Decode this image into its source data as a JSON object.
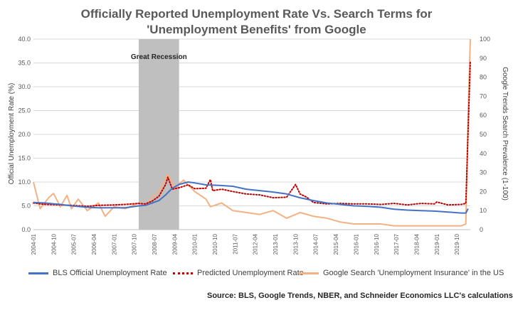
{
  "chart_data": {
    "type": "line",
    "title": [
      "Officially Reported Unemployment Rate Vs. Search Terms for",
      "'Unemployment Benefits' from Google"
    ],
    "ylabel": "Official Unemployment Rate (%)",
    "y2label": "Google Trends Search Prevalence (1-100)",
    "ylim": [
      0,
      40
    ],
    "y_ticks": [
      "0.0",
      "5.0",
      "10.0",
      "15.0",
      "20.0",
      "25.0",
      "30.0",
      "35.0",
      "40.0"
    ],
    "y2lim": [
      0,
      100
    ],
    "y2_ticks": [
      "0",
      "10",
      "20",
      "30",
      "40",
      "50",
      "60",
      "70",
      "80",
      "90",
      "100"
    ],
    "x_tick_labels": [
      "2004-01",
      "2004-10",
      "2005-07",
      "2006-04",
      "2007-01",
      "2007-10",
      "2008-07",
      "2009-04",
      "2010-01",
      "2010-10",
      "2011-07",
      "2012-04",
      "2013-01",
      "2013-10",
      "2014-07",
      "2015-04",
      "2016-01",
      "2016-10",
      "2017-07",
      "2018-04",
      "2019-01",
      "2019-10"
    ],
    "x_range": [
      "2004-01",
      "2020-04"
    ],
    "shaded_region": {
      "label": "Great Recession",
      "start": "2007-12",
      "end": "2009-06"
    },
    "grid": "horizontal",
    "legend_position": "bottom",
    "series": [
      {
        "name": "BLS Official Unemployment Rate",
        "axis": "left",
        "style": "solid",
        "color": "#4472c4",
        "points": [
          [
            "2004-01",
            5.7
          ],
          [
            "2004-06",
            5.6
          ],
          [
            "2005-01",
            5.3
          ],
          [
            "2005-06",
            5.0
          ],
          [
            "2006-01",
            4.7
          ],
          [
            "2006-06",
            4.6
          ],
          [
            "2007-01",
            4.6
          ],
          [
            "2007-06",
            4.6
          ],
          [
            "2007-12",
            5.0
          ],
          [
            "2008-03",
            5.1
          ],
          [
            "2008-06",
            5.6
          ],
          [
            "2008-09",
            6.1
          ],
          [
            "2008-12",
            7.3
          ],
          [
            "2009-03",
            8.7
          ],
          [
            "2009-06",
            9.5
          ],
          [
            "2009-10",
            10.0
          ],
          [
            "2010-01",
            9.8
          ],
          [
            "2010-06",
            9.4
          ],
          [
            "2010-12",
            9.3
          ],
          [
            "2011-06",
            9.1
          ],
          [
            "2011-12",
            8.5
          ],
          [
            "2012-06",
            8.2
          ],
          [
            "2012-12",
            7.9
          ],
          [
            "2013-06",
            7.5
          ],
          [
            "2013-12",
            6.7
          ],
          [
            "2014-06",
            6.1
          ],
          [
            "2014-12",
            5.6
          ],
          [
            "2015-06",
            5.3
          ],
          [
            "2015-12",
            5.0
          ],
          [
            "2016-06",
            4.9
          ],
          [
            "2016-12",
            4.7
          ],
          [
            "2017-06",
            4.3
          ],
          [
            "2017-12",
            4.1
          ],
          [
            "2018-06",
            4.0
          ],
          [
            "2018-12",
            3.9
          ],
          [
            "2019-06",
            3.7
          ],
          [
            "2019-12",
            3.5
          ],
          [
            "2020-02",
            3.5
          ],
          [
            "2020-03",
            4.4
          ]
        ]
      },
      {
        "name": "Predicted Unemployment Rate",
        "axis": "left",
        "style": "dotted",
        "color": "#c00000",
        "points": [
          [
            "2004-01",
            5.6
          ],
          [
            "2004-06",
            5.3
          ],
          [
            "2005-01",
            5.2
          ],
          [
            "2005-06",
            5.1
          ],
          [
            "2006-01",
            4.9
          ],
          [
            "2006-06",
            5.1
          ],
          [
            "2007-01",
            5.2
          ],
          [
            "2007-06",
            5.3
          ],
          [
            "2007-12",
            5.5
          ],
          [
            "2008-03",
            5.4
          ],
          [
            "2008-06",
            6.0
          ],
          [
            "2008-09",
            7.0
          ],
          [
            "2008-12",
            9.5
          ],
          [
            "2009-01",
            11.0
          ],
          [
            "2009-03",
            8.5
          ],
          [
            "2009-06",
            8.8
          ],
          [
            "2009-10",
            9.4
          ],
          [
            "2010-01",
            8.6
          ],
          [
            "2010-06",
            8.7
          ],
          [
            "2010-08",
            10.5
          ],
          [
            "2010-09",
            8.2
          ],
          [
            "2011-01",
            8.5
          ],
          [
            "2011-06",
            8.0
          ],
          [
            "2011-12",
            7.5
          ],
          [
            "2012-06",
            7.3
          ],
          [
            "2012-12",
            6.7
          ],
          [
            "2013-06",
            6.8
          ],
          [
            "2013-10",
            9.5
          ],
          [
            "2013-12",
            7.5
          ],
          [
            "2014-03",
            6.8
          ],
          [
            "2014-06",
            5.7
          ],
          [
            "2014-12",
            5.4
          ],
          [
            "2015-06",
            5.5
          ],
          [
            "2015-12",
            5.4
          ],
          [
            "2016-06",
            5.4
          ],
          [
            "2016-12",
            5.3
          ],
          [
            "2017-06",
            5.5
          ],
          [
            "2017-12",
            5.2
          ],
          [
            "2018-06",
            5.5
          ],
          [
            "2018-12",
            5.4
          ],
          [
            "2019-01",
            5.8
          ],
          [
            "2019-06",
            5.2
          ],
          [
            "2019-12",
            5.3
          ],
          [
            "2020-02",
            5.5
          ],
          [
            "2020-04",
            35.4
          ]
        ]
      },
      {
        "name": "Google Search  'Unemployment Insurance' in the US",
        "axis": "right",
        "style": "solid",
        "color": "#f4b183",
        "points": [
          [
            "2004-01",
            25
          ],
          [
            "2004-04",
            11
          ],
          [
            "2004-08",
            17
          ],
          [
            "2004-10",
            19
          ],
          [
            "2005-01",
            12
          ],
          [
            "2005-04",
            18
          ],
          [
            "2005-06",
            11
          ],
          [
            "2005-09",
            16
          ],
          [
            "2006-01",
            10
          ],
          [
            "2006-06",
            14
          ],
          [
            "2006-09",
            7
          ],
          [
            "2007-01",
            12
          ],
          [
            "2007-06",
            11
          ],
          [
            "2007-12",
            14
          ],
          [
            "2008-03",
            13
          ],
          [
            "2008-06",
            17
          ],
          [
            "2008-09",
            20
          ],
          [
            "2008-12",
            27
          ],
          [
            "2009-01",
            29
          ],
          [
            "2009-04",
            22
          ],
          [
            "2009-08",
            26
          ],
          [
            "2010-01",
            20
          ],
          [
            "2010-06",
            16
          ],
          [
            "2010-08",
            12
          ],
          [
            "2011-01",
            14
          ],
          [
            "2011-06",
            10
          ],
          [
            "2011-12",
            9
          ],
          [
            "2012-06",
            8
          ],
          [
            "2012-12",
            10
          ],
          [
            "2013-06",
            6
          ],
          [
            "2013-12",
            9
          ],
          [
            "2014-06",
            7
          ],
          [
            "2014-12",
            6
          ],
          [
            "2015-06",
            4
          ],
          [
            "2015-12",
            3
          ],
          [
            "2016-06",
            3
          ],
          [
            "2016-12",
            3
          ],
          [
            "2017-06",
            2
          ],
          [
            "2017-12",
            2
          ],
          [
            "2018-06",
            2
          ],
          [
            "2018-12",
            2
          ],
          [
            "2019-06",
            2
          ],
          [
            "2019-12",
            2
          ],
          [
            "2020-02",
            3
          ],
          [
            "2020-03",
            60
          ],
          [
            "2020-04",
            100
          ]
        ]
      }
    ],
    "source_note": "Source: BLS, Google Trends, NBER, and Schneider Economics LLC's calculations"
  }
}
